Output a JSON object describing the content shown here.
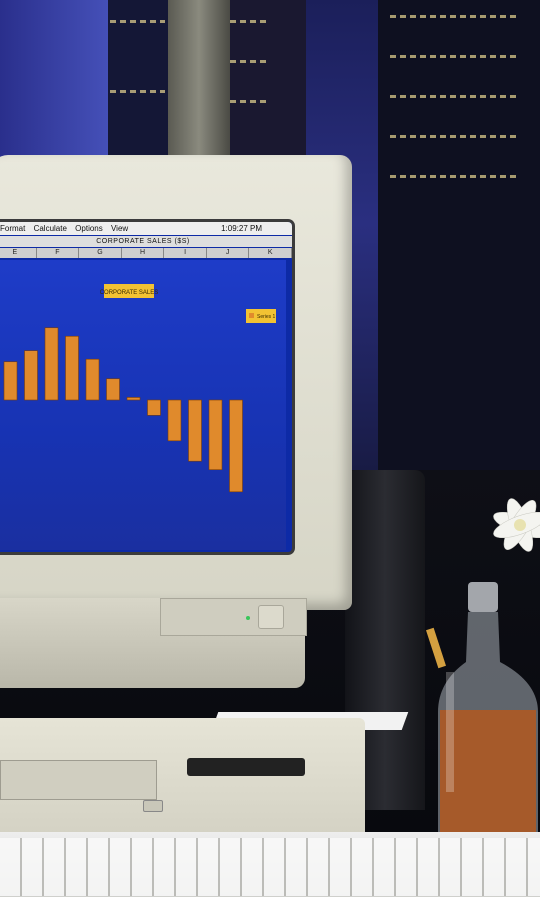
{
  "screen": {
    "menus": [
      "Format",
      "Calculate",
      "Options",
      "View"
    ],
    "clock": "1:09:27 PM",
    "document_title": "CORPORATE SALES ($S)",
    "columns": [
      "E",
      "F",
      "G",
      "H",
      "I",
      "J",
      "K"
    ]
  },
  "chart_data": {
    "type": "bar",
    "title": "CORPORATE SALES",
    "legend": "Series 1",
    "legend_position": "top-right",
    "values": [
      45,
      58,
      85,
      75,
      48,
      25,
      3,
      -18,
      -48,
      -72,
      -82,
      -108
    ],
    "colors": {
      "bar": "#e08a2c",
      "background": "#1733b3",
      "title_box": "#f2c233"
    }
  },
  "colors": {
    "monitor": "#e6e4d6",
    "screen": "#0d2aa6",
    "night_sky": "#1b1f5a"
  }
}
